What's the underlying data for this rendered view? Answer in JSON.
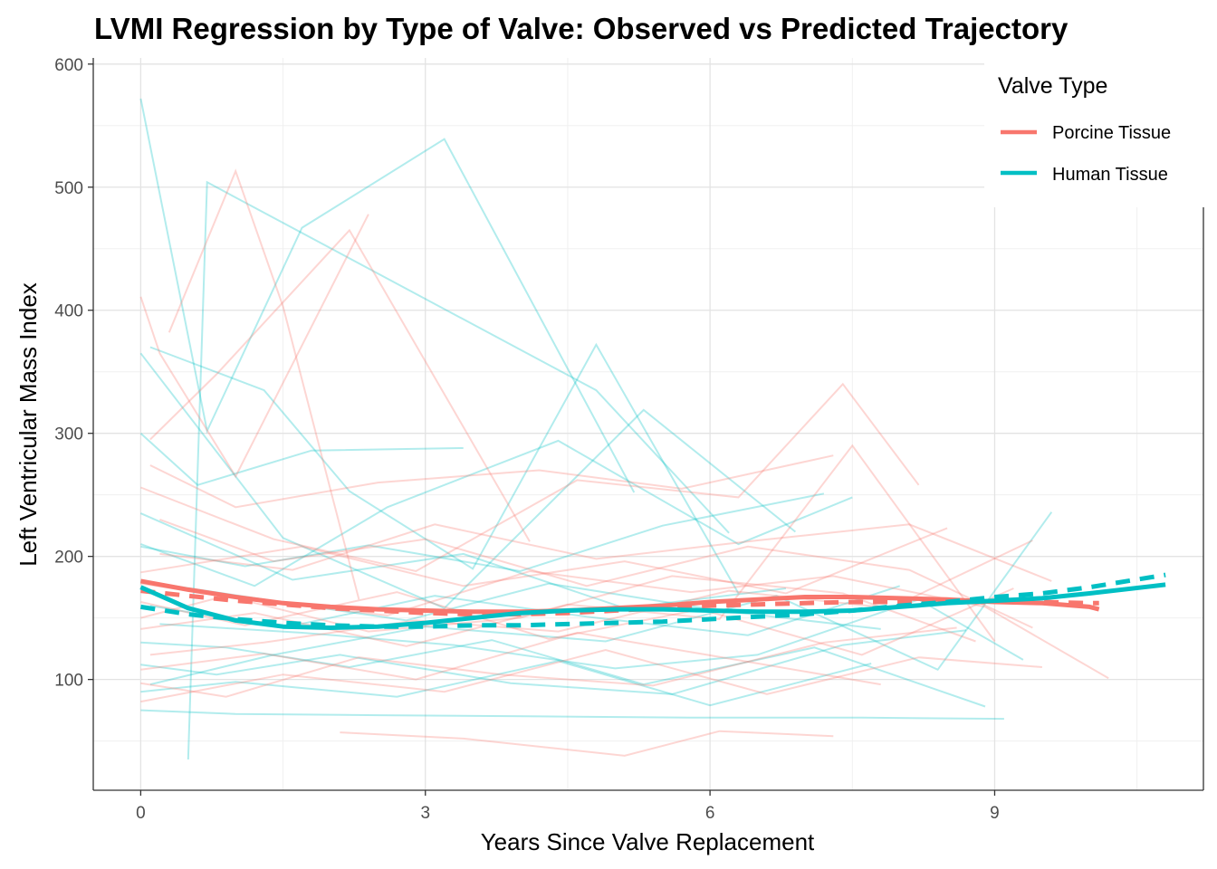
{
  "chart_data": {
    "type": "line",
    "title": "LVMI Regression by Type of Valve: Observed vs Predicted Trajectory",
    "xlabel": "Years Since Valve Replacement",
    "ylabel": "Left Ventricular Mass Index",
    "xlim": [
      -0.5,
      11.2
    ],
    "ylim": [
      10,
      605
    ],
    "x_ticks": [
      0,
      3,
      6,
      9
    ],
    "x_tick_labels": [
      "0",
      "3",
      "6",
      "9"
    ],
    "y_ticks": [
      100,
      200,
      300,
      400,
      500,
      600
    ],
    "y_tick_labels": [
      "100",
      "200",
      "300",
      "400",
      "500",
      "600"
    ],
    "grid": true,
    "legend": {
      "title": "Valve Type",
      "position": "top-right",
      "entries": [
        "Porcine Tissue",
        "Human Tissue"
      ]
    },
    "colors": {
      "porcine": "#F8766D",
      "human": "#00BFC4"
    },
    "series": [
      {
        "name": "Porcine Tissue",
        "role": "observed-smooth",
        "color": "#F8766D",
        "style": "solid",
        "x": [
          0,
          0.5,
          1,
          1.5,
          2,
          2.5,
          3,
          3.5,
          4,
          4.5,
          5,
          5.5,
          6,
          6.5,
          7,
          7.5,
          8,
          8.5,
          9,
          9.5,
          10,
          10.1
        ],
        "y": [
          180,
          173,
          167,
          162,
          159,
          157,
          156,
          155,
          155,
          156,
          158,
          160,
          163,
          165,
          167,
          167,
          166,
          165,
          163,
          162,
          159,
          157
        ]
      },
      {
        "name": "Porcine Tissue",
        "role": "predicted",
        "color": "#F8766D",
        "style": "dashed",
        "x": [
          0,
          0.5,
          1,
          1.5,
          2,
          2.5,
          3,
          3.5,
          4,
          4.5,
          5,
          5.5,
          6,
          6.5,
          7,
          7.5,
          8,
          8.5,
          9,
          9.5,
          10,
          10.1
        ],
        "y": [
          172,
          168,
          164,
          161,
          158,
          156,
          154,
          153,
          153,
          154,
          156,
          158,
          160,
          161,
          162,
          163,
          163,
          163,
          163,
          163,
          162,
          162
        ]
      },
      {
        "name": "Human Tissue",
        "role": "observed-smooth",
        "color": "#00BFC4",
        "style": "solid",
        "x": [
          0,
          0.5,
          1,
          1.5,
          2,
          2.5,
          3,
          3.5,
          4,
          4.5,
          5,
          5.5,
          6,
          6.5,
          7,
          7.5,
          8,
          8.5,
          9,
          9.5,
          10,
          10.8
        ],
        "y": [
          175,
          158,
          148,
          143,
          142,
          143,
          146,
          150,
          154,
          156,
          157,
          157,
          156,
          155,
          155,
          156,
          159,
          162,
          164,
          166,
          170,
          177
        ]
      },
      {
        "name": "Human Tissue",
        "role": "predicted",
        "color": "#00BFC4",
        "style": "dashed",
        "x": [
          0,
          0.5,
          1,
          1.5,
          2,
          2.5,
          3,
          3.5,
          4,
          4.5,
          5,
          5.5,
          6,
          6.5,
          7,
          7.5,
          8,
          8.5,
          9,
          9.5,
          10,
          10.8
        ],
        "y": [
          159,
          153,
          149,
          146,
          144,
          143,
          143,
          144,
          144,
          145,
          146,
          147,
          149,
          151,
          153,
          156,
          160,
          163,
          167,
          170,
          175,
          185
        ]
      }
    ],
    "individual_trajectories": [
      {
        "group": "Human Tissue",
        "x": [
          0,
          0.7,
          1.7,
          3.2,
          5.2
        ],
        "y": [
          572,
          302,
          467,
          539,
          252
        ]
      },
      {
        "group": "Human Tissue",
        "x": [
          0.5,
          0.7,
          4.8,
          6.2
        ],
        "y": [
          35,
          504,
          335,
          219
        ]
      },
      {
        "group": "Human Tissue",
        "x": [
          0.1,
          1.3,
          2.2,
          3.5,
          4.8,
          6.3
        ],
        "y": [
          370,
          335,
          253,
          190,
          372,
          170
        ]
      },
      {
        "group": "Human Tissue",
        "x": [
          0,
          0.6,
          1.8,
          3.4
        ],
        "y": [
          300,
          258,
          286,
          288
        ]
      },
      {
        "group": "Human Tissue",
        "x": [
          0,
          1.5,
          3.2,
          5.3,
          6.9
        ],
        "y": [
          365,
          215,
          158,
          319,
          220
        ]
      },
      {
        "group": "Human Tissue",
        "x": [
          0,
          1.2,
          2.6,
          4.4,
          6.3,
          7.5
        ],
        "y": [
          210,
          176,
          240,
          294,
          210,
          248
        ]
      },
      {
        "group": "Human Tissue",
        "x": [
          0,
          1,
          2.5,
          4.2,
          5.8,
          7.6,
          9.1
        ],
        "y": [
          75,
          72,
          71,
          70,
          69,
          69,
          68
        ]
      },
      {
        "group": "Human Tissue",
        "x": [
          0.1,
          1.4,
          3,
          4.9,
          6.7,
          8.4,
          9.6
        ],
        "y": [
          96,
          120,
          143,
          131,
          168,
          108,
          236
        ]
      },
      {
        "group": "Human Tissue",
        "x": [
          0,
          0.9,
          2.2,
          3.7,
          5.3,
          7.1,
          8.9
        ],
        "y": [
          130,
          126,
          110,
          132,
          96,
          126,
          78
        ]
      },
      {
        "group": "Human Tissue",
        "x": [
          0,
          1.3,
          2.8,
          4.3,
          6.1,
          7.8
        ],
        "y": [
          180,
          165,
          148,
          178,
          156,
          141
        ]
      },
      {
        "group": "Human Tissue",
        "x": [
          0.2,
          1.7,
          3.3,
          5,
          6.5,
          8.2,
          9.3
        ],
        "y": [
          145,
          138,
          128,
          109,
          120,
          165,
          116
        ]
      },
      {
        "group": "Human Tissue",
        "x": [
          0,
          1.1,
          2.4,
          4,
          5.5,
          7.2
        ],
        "y": [
          208,
          192,
          209,
          188,
          225,
          251
        ]
      },
      {
        "group": "Human Tissue",
        "x": [
          0,
          0.8,
          2.1,
          3.9,
          5.6,
          7.4,
          8.7
        ],
        "y": [
          112,
          104,
          120,
          97,
          88,
          128,
          140
        ]
      },
      {
        "group": "Human Tissue",
        "x": [
          0.1,
          1.5,
          3.1,
          4.7,
          6.4,
          8
        ],
        "y": [
          160,
          142,
          168,
          151,
          136,
          176
        ]
      },
      {
        "group": "Human Tissue",
        "x": [
          0,
          1,
          2.7,
          4.4,
          6,
          7.7
        ],
        "y": [
          90,
          98,
          86,
          115,
          79,
          113
        ]
      },
      {
        "group": "Human Tissue",
        "x": [
          0,
          1.6,
          3.4,
          5.1,
          6.8
        ],
        "y": [
          235,
          181,
          202,
          158,
          174
        ]
      },
      {
        "group": "Porcine Tissue",
        "x": [
          0,
          0.2,
          1,
          2.4
        ],
        "y": [
          411,
          365,
          265,
          478
        ]
      },
      {
        "group": "Porcine Tissue",
        "x": [
          0.3,
          1,
          1.5,
          2.3
        ],
        "y": [
          382,
          513,
          403,
          165
        ]
      },
      {
        "group": "Porcine Tissue",
        "x": [
          0.1,
          0.8,
          2.2,
          4.1
        ],
        "y": [
          295,
          348,
          465,
          212
        ]
      },
      {
        "group": "Porcine Tissue",
        "x": [
          0,
          1.4,
          2.9,
          4.6,
          6.3,
          7.4,
          8.2
        ],
        "y": [
          256,
          214,
          188,
          262,
          248,
          340,
          258
        ]
      },
      {
        "group": "Porcine Tissue",
        "x": [
          0,
          1.1,
          2.6,
          4.1,
          5.8,
          7.3,
          8.9,
          10.2
        ],
        "y": [
          178,
          165,
          152,
          188,
          171,
          184,
          159,
          101
        ]
      },
      {
        "group": "Porcine Tissue",
        "x": [
          0.1,
          1.3,
          2.9,
          4.4,
          6.2,
          7.9,
          9.4
        ],
        "y": [
          120,
          130,
          148,
          139,
          172,
          158,
          213
        ]
      },
      {
        "group": "Porcine Tissue",
        "x": [
          0,
          0.9,
          2.3,
          3.8,
          5.4,
          7.2,
          8.6
        ],
        "y": [
          97,
          86,
          118,
          104,
          95,
          130,
          142
        ]
      },
      {
        "group": "Porcine Tissue",
        "x": [
          2.1,
          3.4,
          5.1,
          6.1,
          7.3
        ],
        "y": [
          57,
          52,
          38,
          58,
          54
        ]
      },
      {
        "group": "Porcine Tissue",
        "x": [
          0.2,
          1.6,
          3.1,
          4.8,
          6.5,
          8.1,
          9.6
        ],
        "y": [
          202,
          189,
          226,
          198,
          213,
          226,
          180
        ]
      },
      {
        "group": "Porcine Tissue",
        "x": [
          0,
          1.2,
          2.8,
          4.5,
          6.1,
          7.5,
          9
        ],
        "y": [
          141,
          154,
          127,
          161,
          149,
          290,
          131
        ]
      },
      {
        "group": "Porcine Tissue",
        "x": [
          0,
          1.5,
          3.2,
          4.9,
          6.6,
          8.2,
          9.5
        ],
        "y": [
          82,
          104,
          90,
          124,
          88,
          118,
          110
        ]
      },
      {
        "group": "Porcine Tissue",
        "x": [
          0.1,
          1,
          2.5,
          4.2,
          5.7,
          7.3
        ],
        "y": [
          274,
          240,
          260,
          270,
          255,
          282
        ]
      },
      {
        "group": "Porcine Tissue",
        "x": [
          0,
          1.1,
          2.7,
          4.3,
          5.9,
          7.6,
          9.2
        ],
        "y": [
          163,
          144,
          171,
          133,
          157,
          120,
          174
        ]
      },
      {
        "group": "Porcine Tissue",
        "x": [
          0,
          1.3,
          2.9,
          4.6,
          6.2,
          7.8
        ],
        "y": [
          108,
          121,
          100,
          138,
          117,
          96
        ]
      },
      {
        "group": "Porcine Tissue",
        "x": [
          0.2,
          1.4,
          3,
          4.7,
          6.4,
          8.1,
          9.4
        ],
        "y": [
          230,
          196,
          214,
          176,
          208,
          189,
          142
        ]
      },
      {
        "group": "Porcine Tissue",
        "x": [
          0,
          0.9,
          2.4,
          4,
          5.6,
          7.4,
          8.8
        ],
        "y": [
          150,
          168,
          139,
          150,
          184,
          170,
          131
        ]
      },
      {
        "group": "Porcine Tissue",
        "x": [
          0,
          1.7,
          3.4,
          5.1,
          6.8,
          8.5
        ],
        "y": [
          187,
          208,
          176,
          196,
          170,
          223
        ]
      }
    ]
  }
}
